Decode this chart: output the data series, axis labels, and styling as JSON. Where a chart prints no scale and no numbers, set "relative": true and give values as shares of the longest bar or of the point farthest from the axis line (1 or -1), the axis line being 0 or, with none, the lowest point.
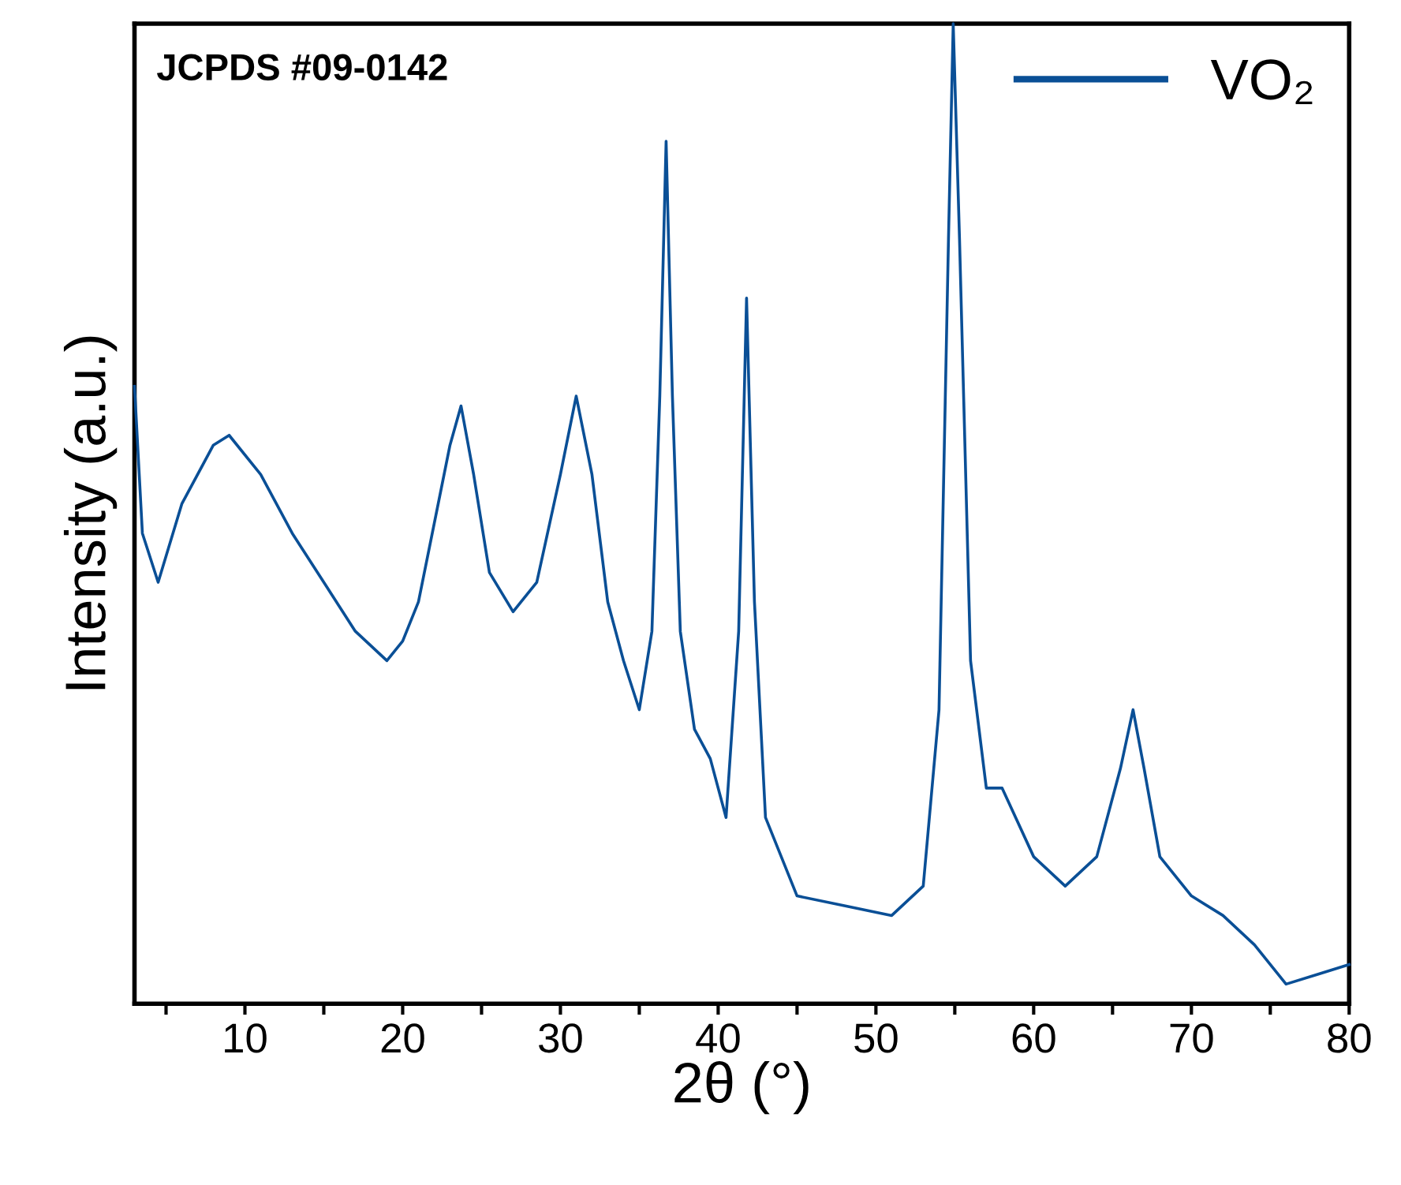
{
  "chart_data": {
    "type": "line",
    "relative": true,
    "xlabel": "2θ (°)",
    "ylabel": "Intensity (a.u.)",
    "annotations": [
      "JCPDS #09-0142"
    ],
    "xlim": [
      3,
      80
    ],
    "xticks": [
      {
        "value": 5,
        "label": null
      },
      10,
      {
        "value": 15,
        "label": null
      },
      20,
      {
        "value": 25,
        "label": null
      },
      30,
      {
        "value": 35,
        "label": null
      },
      40,
      {
        "value": 45,
        "label": null
      },
      50,
      {
        "value": 55,
        "label": null
      },
      60,
      {
        "value": 65,
        "label": null
      },
      70,
      {
        "value": 75,
        "label": null
      },
      80
    ],
    "tick_labels": "x",
    "grid": false,
    "legend": "top right",
    "series": [
      {
        "name": "VO₂",
        "color": "#0a4f96",
        "x": [
          3,
          3.5,
          4.5,
          6,
          8,
          9,
          11,
          13,
          15,
          17,
          19,
          20,
          21,
          22,
          23,
          23.7,
          24.5,
          25.5,
          27,
          28.5,
          30,
          31,
          32,
          33,
          34,
          35,
          35.8,
          36.3,
          36.7,
          37.1,
          37.6,
          38.5,
          39.5,
          40.5,
          41.3,
          41.8,
          42.3,
          43,
          45,
          48,
          51,
          53,
          54,
          54.6,
          54.9,
          55.3,
          56,
          57,
          58,
          60,
          62,
          64,
          65.5,
          66.3,
          67,
          68,
          70,
          72,
          74,
          76,
          78,
          80
        ],
        "values": [
          0.63,
          0.48,
          0.43,
          0.51,
          0.57,
          0.58,
          0.54,
          0.48,
          0.43,
          0.38,
          0.35,
          0.37,
          0.41,
          0.49,
          0.57,
          0.61,
          0.54,
          0.44,
          0.4,
          0.43,
          0.54,
          0.62,
          0.54,
          0.41,
          0.35,
          0.3,
          0.38,
          0.62,
          0.88,
          0.62,
          0.38,
          0.28,
          0.25,
          0.19,
          0.38,
          0.72,
          0.41,
          0.19,
          0.11,
          0.1,
          0.09,
          0.12,
          0.3,
          0.78,
          1,
          0.78,
          0.35,
          0.22,
          0.22,
          0.15,
          0.12,
          0.15,
          0.24,
          0.3,
          0.24,
          0.15,
          0.11,
          0.09,
          0.06,
          0.02,
          0.03,
          0.04
        ]
      }
    ]
  }
}
